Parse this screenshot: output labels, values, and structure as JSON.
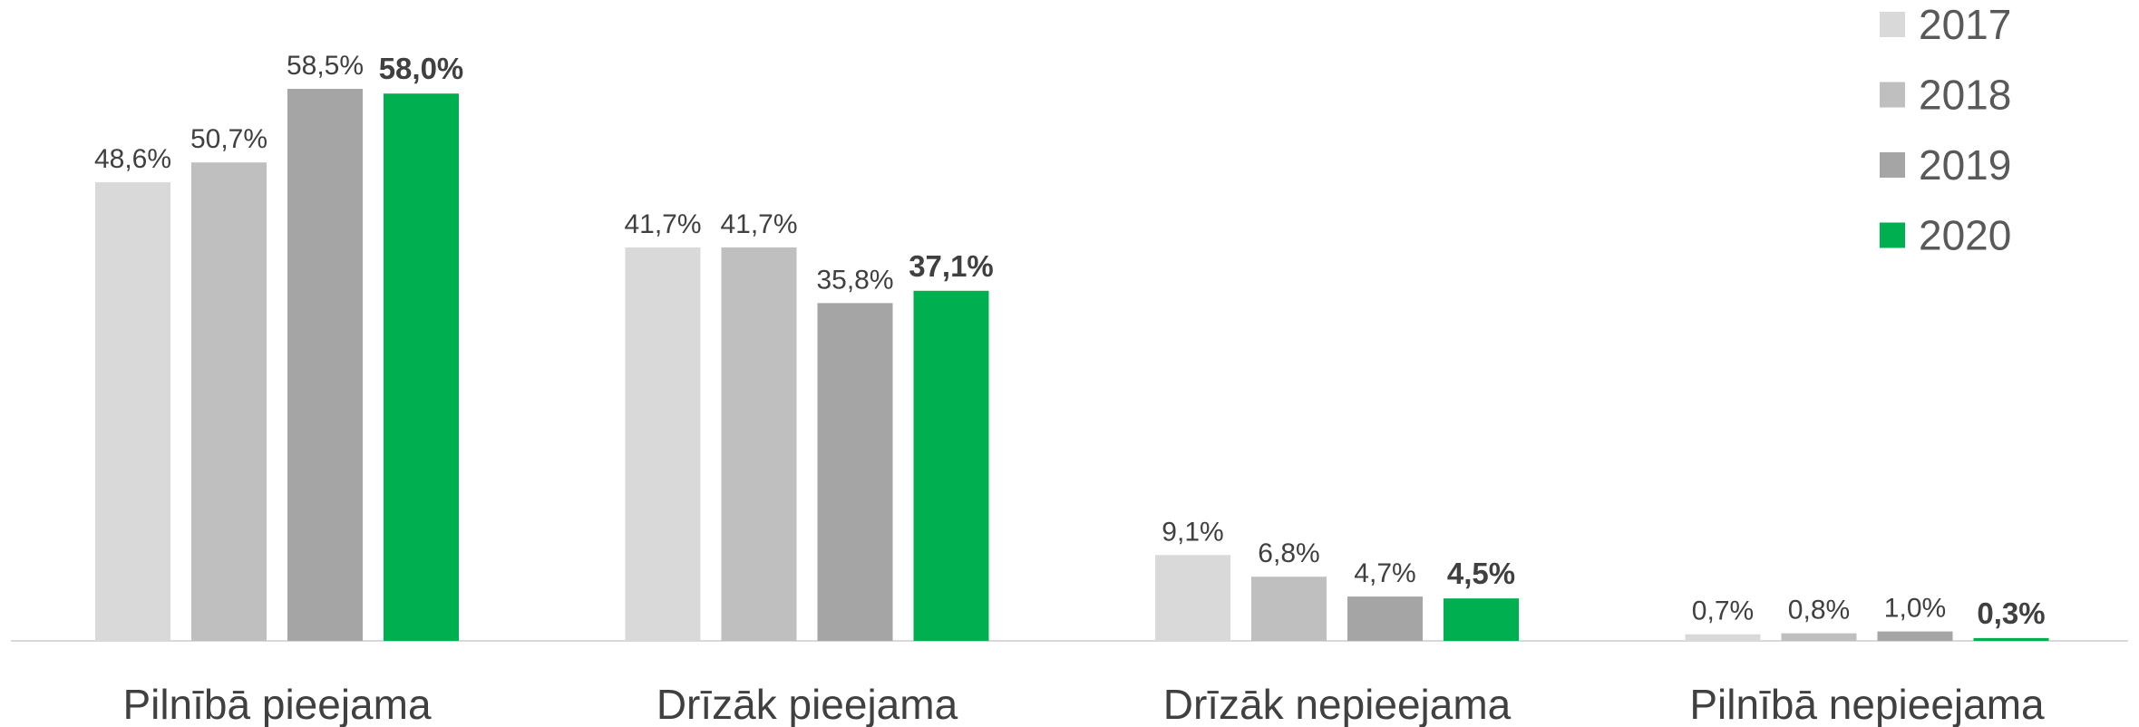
{
  "chart_data": {
    "type": "bar",
    "categories": [
      "Pilnībā pieejama",
      "Drīzāk pieejama",
      "Drīzāk nepieejama",
      "Pilnībā nepieejama"
    ],
    "series": [
      {
        "name": "2017",
        "color": "#d9d9d9",
        "values": [
          48.6,
          41.7,
          9.1,
          0.7
        ],
        "value_labels": [
          "48,6%",
          "41,7%",
          "9,1%",
          "0,7%"
        ]
      },
      {
        "name": "2018",
        "color": "#bfbfbf",
        "values": [
          50.7,
          41.7,
          6.8,
          0.8
        ],
        "value_labels": [
          "50,7%",
          "41,7%",
          "6,8%",
          "0,8%"
        ]
      },
      {
        "name": "2019",
        "color": "#a5a5a5",
        "values": [
          58.5,
          35.8,
          4.7,
          1.0
        ],
        "value_labels": [
          "58,5%",
          "35,8%",
          "4,7%",
          "1,0%"
        ]
      },
      {
        "name": "2020",
        "color": "#00b050",
        "values": [
          58.0,
          37.1,
          4.5,
          0.3
        ],
        "value_labels": [
          "58,0%",
          "37,1%",
          "4,5%",
          "0,3%"
        ]
      }
    ],
    "legend": "top-right"
  }
}
